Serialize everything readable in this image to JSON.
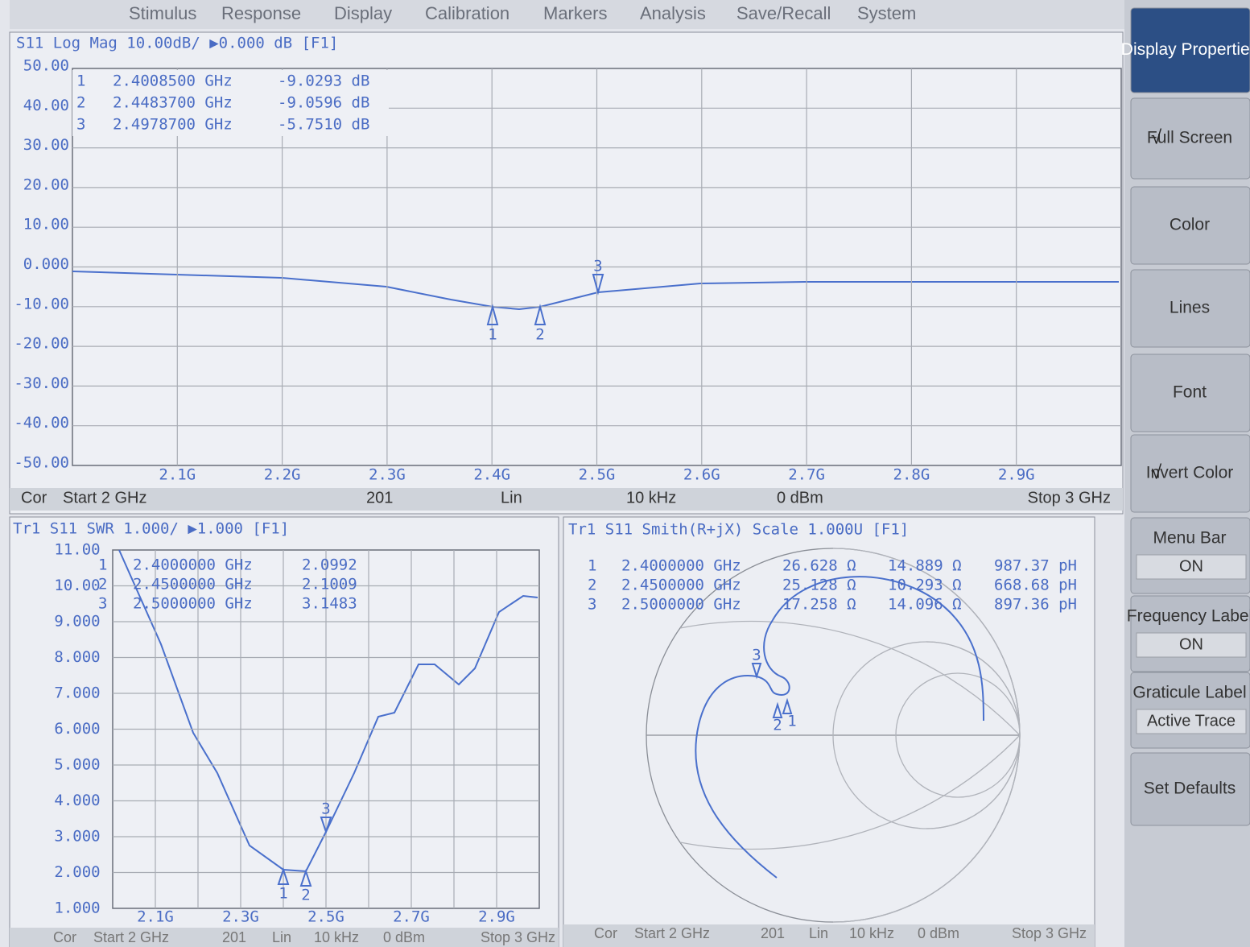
{
  "menu": [
    "Stimulus",
    "Response",
    "Display",
    "Calibration",
    "Markers",
    "Analysis",
    "Save/Recall",
    "System"
  ],
  "top_panel": {
    "title": "S11 Log Mag 10.00dB/ ▶0.000 dB [F1]",
    "y_labels": [
      "50.00",
      "40.00",
      "30.00",
      "20.00",
      "10.00",
      "0.000",
      "-10.00",
      "-20.00",
      "-30.00",
      "-40.00",
      "-50.00"
    ],
    "x_labels": [
      "2.1G",
      "2.2G",
      "2.3G",
      "2.4G",
      "2.5G",
      "2.6G",
      "2.7G",
      "2.8G",
      "2.9G"
    ],
    "markers": [
      [
        "1",
        "2.4008500 GHz",
        "-9.0293 dB"
      ],
      [
        "2",
        "2.4483700 GHz",
        "-9.0596 dB"
      ],
      [
        "3",
        "2.4978700 GHz",
        "-5.7510 dB"
      ]
    ],
    "status": [
      "Cor",
      "Start 2 GHz",
      "201",
      "Lin",
      "10 kHz",
      "0 dBm",
      "Stop 3 GHz"
    ]
  },
  "swr_panel": {
    "title": "Tr1 S11 SWR 1.000/ ▶1.000 [F1]",
    "y_labels": [
      "11.00",
      "10.00",
      "9.000",
      "8.000",
      "7.000",
      "6.000",
      "5.000",
      "4.000",
      "3.000",
      "2.000",
      "1.000"
    ],
    "x_labels": [
      "2.1G",
      "2.3G",
      "2.5G",
      "2.7G",
      "2.9G"
    ],
    "markers": [
      [
        "1",
        "2.4000000 GHz",
        "2.0992"
      ],
      [
        "2",
        "2.4500000 GHz",
        "2.1009"
      ],
      [
        "3",
        "2.5000000 GHz",
        "3.1483"
      ]
    ],
    "status": [
      "Cor",
      "Start 2 GHz",
      "201",
      "Lin",
      "10 kHz",
      "0 dBm",
      "Stop 3 GHz"
    ]
  },
  "smith_panel": {
    "title": "Tr1 S11 Smith(R+jX) Scale 1.000U [F1]",
    "markers": [
      [
        "1",
        "2.4000000 GHz",
        "26.628 Ω",
        "14.889 Ω",
        "987.37 pH"
      ],
      [
        "2",
        "2.4500000 GHz",
        "25.128 Ω",
        "10.293 Ω",
        "668.68 pH"
      ],
      [
        "3",
        "2.5000000 GHz",
        "17.258 Ω",
        "14.096 Ω",
        "897.36 pH"
      ]
    ],
    "status": [
      "Cor",
      "Start 2 GHz",
      "201",
      "Lin",
      "10 kHz",
      "0 dBm",
      "Stop 3 GHz"
    ]
  },
  "softkeys": [
    {
      "label": "Display Properties"
    },
    {
      "label": "Full Screen",
      "check": "√"
    },
    {
      "label": "Color"
    },
    {
      "label": "Lines"
    },
    {
      "label": "Font"
    },
    {
      "label": "Invert Color",
      "check": "√"
    },
    {
      "label": "Menu Bar",
      "value": "ON"
    },
    {
      "label": "Frequency Label",
      "value": "ON"
    },
    {
      "label": "Graticule Label",
      "value": "Active Trace"
    },
    {
      "label": "Set Defaults"
    }
  ]
}
